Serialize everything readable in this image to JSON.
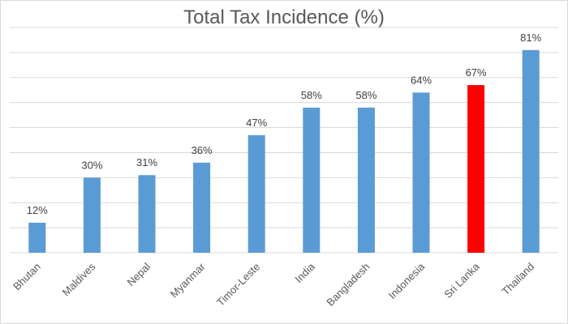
{
  "chart_data": {
    "type": "bar",
    "title": "Total Tax Incidence (%)",
    "xlabel": "",
    "ylabel": "",
    "categories": [
      "Bhutan",
      "Maldives",
      "Nepal",
      "Myanmar",
      "Timor-Leste",
      "India",
      "Bangladesh",
      "Indonesia",
      "Sri Lanka",
      "Thailand"
    ],
    "values": [
      12,
      30,
      31,
      36,
      47,
      58,
      58,
      64,
      67,
      81
    ],
    "data_labels": [
      "12%",
      "30%",
      "31%",
      "36%",
      "47%",
      "58%",
      "58%",
      "64%",
      "67%",
      "81%"
    ],
    "ylim": [
      0,
      90
    ],
    "grid": true,
    "legend": "none",
    "bar_color": "#5b9bd5",
    "highlight_category": "Sri Lanka",
    "highlight_color": "#ff0000"
  }
}
